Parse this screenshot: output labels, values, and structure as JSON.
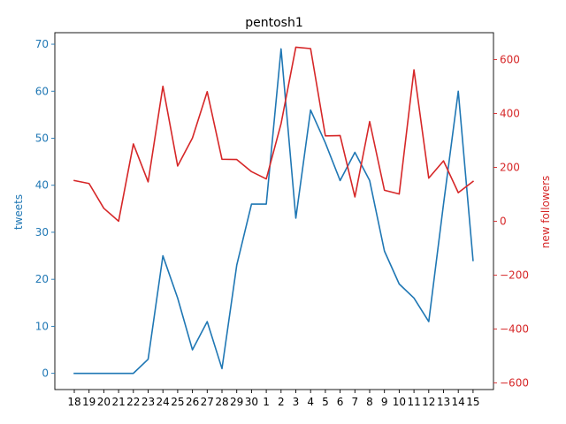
{
  "chart_data": {
    "type": "line",
    "title": "pentosh1",
    "xlabel": "",
    "categories": [
      "18",
      "19",
      "20",
      "21",
      "22",
      "23",
      "24",
      "25",
      "26",
      "27",
      "28",
      "29",
      "30",
      "1",
      "2",
      "3",
      "4",
      "5",
      "6",
      "7",
      "8",
      "9",
      "10",
      "11",
      "12",
      "13",
      "14",
      "15"
    ],
    "left_axis": {
      "label": "tweets",
      "color": "#1f77b4",
      "ylim": [
        -3.45,
        72.45
      ],
      "ticks": [
        0,
        10,
        20,
        30,
        40,
        50,
        60,
        70
      ]
    },
    "right_axis": {
      "label": "new followers",
      "color": "#d62728",
      "ylim": [
        -625,
        700
      ],
      "ticks": [
        -600,
        -400,
        -200,
        0,
        200,
        400,
        600
      ]
    },
    "series": [
      {
        "axis": "left",
        "color": "#1f77b4",
        "values": [
          0,
          0,
          0,
          0,
          0,
          3,
          25,
          16,
          5,
          11,
          1,
          23,
          36,
          36,
          69,
          33,
          56,
          49,
          41,
          47,
          41,
          26,
          19,
          16,
          11,
          36,
          60,
          24
        ]
      },
      {
        "axis": "right",
        "color": "#d62728",
        "values": [
          151,
          140,
          48,
          0,
          287,
          146,
          501,
          205,
          309,
          481,
          230,
          229,
          184,
          157,
          362,
          646,
          641,
          317,
          318,
          90,
          370,
          115,
          101,
          562,
          160,
          224,
          106,
          148
        ]
      }
    ],
    "grid": false,
    "legend": "none"
  }
}
